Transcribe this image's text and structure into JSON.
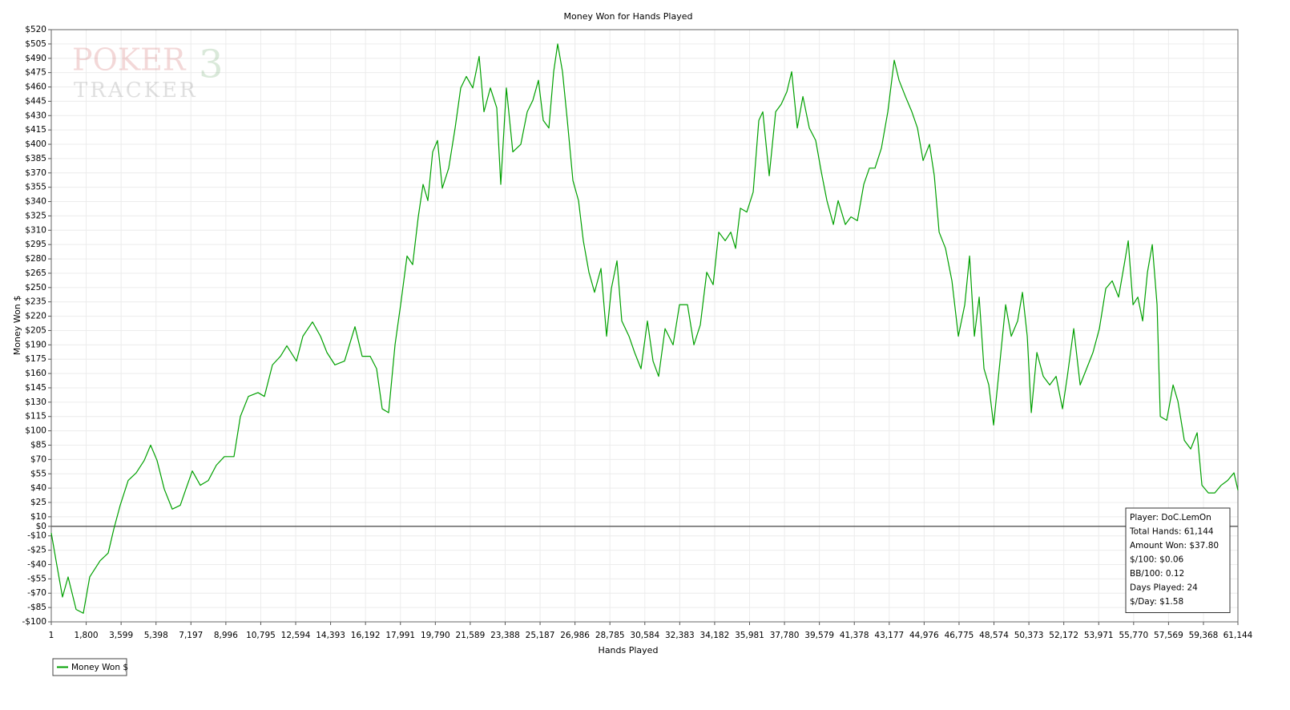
{
  "chart_data": {
    "type": "line",
    "title": "Money Won for Hands Played",
    "x_label": "Hands Played",
    "y_label": "Money Won $",
    "watermark": {
      "word1": "POKER",
      "word2": "TRACKER",
      "mark": "3"
    },
    "stats_box": [
      "Player: DoC.LemOn",
      "Total Hands: 61,144",
      "Amount Won: $37.80",
      "$/100: $0.06",
      "BB/100: 0.12",
      "Days Played: 24",
      "$/Day: $1.58"
    ],
    "xlim": [
      1,
      61144
    ],
    "ylim": [
      -100,
      520
    ],
    "grid": true,
    "legend": "bottom-left",
    "xticks": [
      1,
      {
        "value": 1800,
        "label": "1,800"
      },
      {
        "value": 3599,
        "label": "3,599"
      },
      {
        "value": 5398,
        "label": "5,398"
      },
      {
        "value": 7197,
        "label": "7,197"
      },
      {
        "value": 8996,
        "label": "8,996"
      },
      {
        "value": 10795,
        "label": "10,795"
      },
      {
        "value": 12594,
        "label": "12,594"
      },
      {
        "value": 14393,
        "label": "14,393"
      },
      {
        "value": 16192,
        "label": "16,192"
      },
      {
        "value": 17991,
        "label": "17,991"
      },
      {
        "value": 19790,
        "label": "19,790"
      },
      {
        "value": 21589,
        "label": "21,589"
      },
      {
        "value": 23388,
        "label": "23,388"
      },
      {
        "value": 25187,
        "label": "25,187"
      },
      {
        "value": 26986,
        "label": "26,986"
      },
      {
        "value": 28785,
        "label": "28,785"
      },
      {
        "value": 30584,
        "label": "30,584"
      },
      {
        "value": 32383,
        "label": "32,383"
      },
      {
        "value": 34182,
        "label": "34,182"
      },
      {
        "value": 35981,
        "label": "35,981"
      },
      {
        "value": 37780,
        "label": "37,780"
      },
      {
        "value": 39579,
        "label": "39,579"
      },
      {
        "value": 41378,
        "label": "41,378"
      },
      {
        "value": 43177,
        "label": "43,177"
      },
      {
        "value": 44976,
        "label": "44,976"
      },
      {
        "value": 46775,
        "label": "46,775"
      },
      {
        "value": 48574,
        "label": "48,574"
      },
      {
        "value": 50373,
        "label": "50,373"
      },
      {
        "value": 52172,
        "label": "52,172"
      },
      {
        "value": 53971,
        "label": "53,971"
      },
      {
        "value": 55770,
        "label": "55,770"
      },
      {
        "value": 57569,
        "label": "57,569"
      },
      {
        "value": 59368,
        "label": "59,368"
      },
      {
        "value": 61144,
        "label": "61,144"
      }
    ],
    "yticks": [
      {
        "value": 520,
        "label": "$520"
      },
      {
        "value": 505,
        "label": "$505"
      },
      {
        "value": 490,
        "label": "$490"
      },
      {
        "value": 475,
        "label": "$475"
      },
      {
        "value": 460,
        "label": "$460"
      },
      {
        "value": 445,
        "label": "$445"
      },
      {
        "value": 430,
        "label": "$430"
      },
      {
        "value": 415,
        "label": "$415"
      },
      {
        "value": 400,
        "label": "$400"
      },
      {
        "value": 385,
        "label": "$385"
      },
      {
        "value": 370,
        "label": "$370"
      },
      {
        "value": 355,
        "label": "$355"
      },
      {
        "value": 340,
        "label": "$340"
      },
      {
        "value": 325,
        "label": "$325"
      },
      {
        "value": 310,
        "label": "$310"
      },
      {
        "value": 295,
        "label": "$295"
      },
      {
        "value": 280,
        "label": "$280"
      },
      {
        "value": 265,
        "label": "$265"
      },
      {
        "value": 250,
        "label": "$250"
      },
      {
        "value": 235,
        "label": "$235"
      },
      {
        "value": 220,
        "label": "$220"
      },
      {
        "value": 205,
        "label": "$205"
      },
      {
        "value": 190,
        "label": "$190"
      },
      {
        "value": 175,
        "label": "$175"
      },
      {
        "value": 160,
        "label": "$160"
      },
      {
        "value": 145,
        "label": "$145"
      },
      {
        "value": 130,
        "label": "$130"
      },
      {
        "value": 115,
        "label": "$115"
      },
      {
        "value": 100,
        "label": "$100"
      },
      {
        "value": 85,
        "label": "$85"
      },
      {
        "value": 70,
        "label": "$70"
      },
      {
        "value": 55,
        "label": "$55"
      },
      {
        "value": 40,
        "label": "$40"
      },
      {
        "value": 25,
        "label": "$25"
      },
      {
        "value": 10,
        "label": "$10"
      },
      {
        "value": 0,
        "label": "$0"
      },
      {
        "value": -10,
        "label": "-$10"
      },
      {
        "value": -25,
        "label": "-$25"
      },
      {
        "value": -40,
        "label": "-$40"
      },
      {
        "value": -55,
        "label": "-$55"
      },
      {
        "value": -70,
        "label": "-$70"
      },
      {
        "value": -85,
        "label": "-$85"
      },
      {
        "value": -100,
        "label": "-$100"
      }
    ],
    "x": [
      1,
      248,
      578,
      867,
      1280,
      1652,
      1982,
      2519,
      2932,
      3221,
      3551,
      3964,
      4377,
      4790,
      5120,
      5450,
      5822,
      6235,
      6648,
      6937,
      7267,
      7680,
      8093,
      8506,
      8919,
      9414,
      9744,
      10157,
      10652,
      10983,
      11396,
      11809,
      12139,
      12634,
      12965,
      13460,
      13873,
      14204,
      14616,
      15112,
      15648,
      16020,
      16433,
      16763,
      17053,
      17383,
      17713,
      18002,
      18332,
      18621,
      18910,
      19158,
      19405,
      19653,
      19901,
      20149,
      20479,
      20809,
      21098,
      21388,
      21718,
      22048,
      22296,
      22626,
      22956,
      23162,
      23451,
      23782,
      24195,
      24525,
      24814,
      25103,
      25351,
      25640,
      25888,
      26094,
      26342,
      26590,
      26879,
      27168,
      27415,
      27704,
      27993,
      28324,
      28613,
      28860,
      29149,
      29397,
      29769,
      30058,
      30388,
      30718,
      31007,
      31296,
      31627,
      32040,
      32370,
      32783,
      33113,
      33444,
      33774,
      34104,
      34393,
      34724,
      35013,
      35260,
      35508,
      35838,
      36168,
      36458,
      36664,
      36994,
      37325,
      37614,
      37903,
      38151,
      38440,
      38729,
      39059,
      39389,
      39678,
      39967,
      40298,
      40545,
      40917,
      41206,
      41536,
      41866,
      42155,
      42444,
      42775,
      43105,
      43435,
      43683,
      44013,
      44344,
      44633,
      44922,
      45252,
      45500,
      45748,
      46078,
      46408,
      46739,
      47069,
      47317,
      47565,
      47812,
      48060,
      48308,
      48556,
      48886,
      49175,
      49464,
      49794,
      50042,
      50289,
      50496,
      50785,
      51115,
      51446,
      51776,
      52106,
      52354,
      52684,
      53015,
      53345,
      53675,
      54006,
      54336,
      54666,
      54996,
      55285,
      55492,
      55740,
      55987,
      56235,
      56483,
      56731,
      56978,
      57144,
      57474,
      57804,
      58052,
      58382,
      58712,
      59043,
      59290,
      59621,
      59951,
      60281,
      60611,
      60941,
      61144
    ],
    "series": [
      {
        "name": "Money Won $",
        "color": "#00a000",
        "values": [
          -7,
          -36,
          -74,
          -53,
          -87,
          -91,
          -53,
          -36,
          -28,
          -3,
          22,
          48,
          56,
          69,
          85,
          69,
          39,
          18,
          22,
          39,
          58,
          43,
          48,
          64,
          73,
          73,
          115,
          136,
          140,
          136,
          169,
          178,
          189,
          173,
          199,
          214,
          199,
          182,
          169,
          173,
          209,
          178,
          178,
          165,
          123,
          119,
          190,
          232,
          283,
          274,
          324,
          358,
          341,
          392,
          404,
          354,
          375,
          417,
          459,
          471,
          459,
          492,
          434,
          459,
          438,
          358,
          459,
          392,
          400,
          434,
          446,
          467,
          425,
          417,
          476,
          505,
          476,
          425,
          362,
          341,
          299,
          266,
          245,
          270,
          199,
          249,
          278,
          215,
          199,
          182,
          165,
          215,
          173,
          157,
          207,
          190,
          232,
          232,
          190,
          211,
          266,
          253,
          308,
          299,
          308,
          291,
          333,
          329,
          350,
          425,
          434,
          367,
          434,
          442,
          455,
          476,
          417,
          450,
          417,
          404,
          371,
          341,
          316,
          341,
          316,
          324,
          320,
          358,
          375,
          375,
          396,
          434,
          488,
          467,
          450,
          434,
          417,
          383,
          400,
          367,
          308,
          291,
          257,
          199,
          232,
          283,
          199,
          240,
          165,
          148,
          106,
          173,
          232,
          199,
          215,
          245,
          199,
          119,
          182,
          157,
          148,
          157,
          123,
          157,
          207,
          148,
          165,
          182,
          207,
          249,
          257,
          240,
          274,
          299,
          232,
          240,
          215,
          266,
          295,
          232,
          115,
          111,
          148,
          131,
          90,
          81,
          98,
          43,
          35,
          35,
          43,
          48,
          56,
          37.8
        ]
      }
    ]
  }
}
